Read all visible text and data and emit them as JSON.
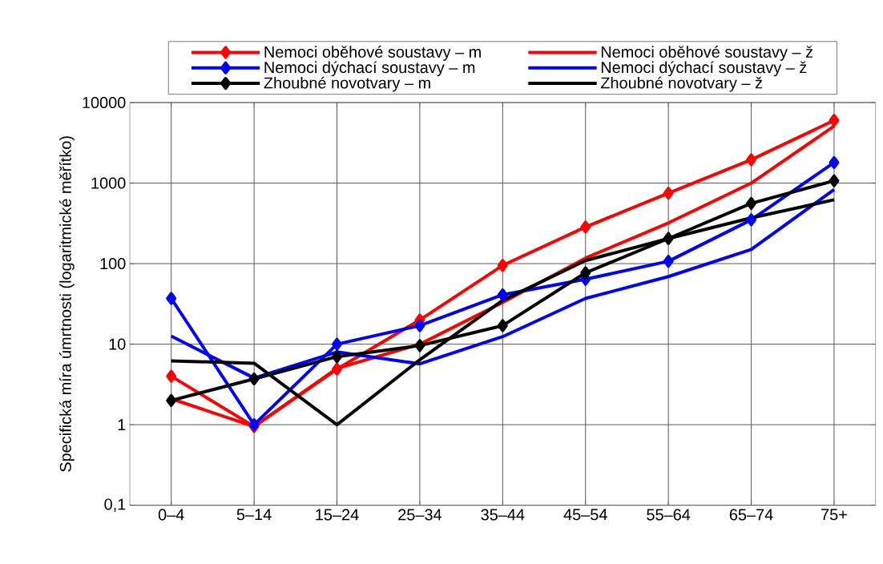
{
  "chart_data": {
    "type": "line",
    "ylabel": "Specifická míra úmrtnosti (logaritmické měřítko)",
    "categories": [
      "0–4",
      "5–14",
      "15–24",
      "25–34",
      "35–44",
      "45–54",
      "55–64",
      "65–74",
      "75+"
    ],
    "log": true,
    "ylim": [
      0.1,
      10000
    ],
    "yticks": [
      {
        "value": 0.1,
        "label": "0,1"
      },
      1,
      10,
      100,
      1000,
      10000
    ],
    "grid": true,
    "legend": "top",
    "series": [
      {
        "name": "Nemoci oběhové soustavy – m",
        "color": "#ff0000",
        "marker": "diamond",
        "values": [
          4.0,
          0.95,
          4.9,
          20,
          95,
          285,
          750,
          1950,
          6000
        ]
      },
      {
        "name": "Nemoci oběhové soustavy – ž",
        "color": "#ff0000",
        "marker": "none",
        "values": [
          2.1,
          0.95,
          5.0,
          10,
          33,
          117,
          320,
          1000,
          5100
        ]
      },
      {
        "name": "Nemoci dýchací soustavy – m",
        "color": "#0000ff",
        "marker": "diamond",
        "values": [
          37,
          1.0,
          10,
          17,
          41,
          64,
          107,
          350,
          1800
        ]
      },
      {
        "name": "Nemoci dýchací soustavy – ž",
        "color": "#0000ff",
        "marker": "none",
        "values": [
          12.6,
          3.8,
          8,
          5.7,
          12.4,
          37,
          69,
          150,
          830
        ]
      },
      {
        "name": "Zhoubné novotvary – m",
        "color": "#000000",
        "marker": "diamond",
        "values": [
          2.0,
          3.7,
          7.0,
          9.6,
          17,
          77,
          205,
          560,
          1070
        ]
      },
      {
        "name": "Zhoubné novotvary – ž",
        "color": "#000000",
        "marker": "none",
        "values": [
          6.2,
          5.8,
          1.0,
          6.4,
          35,
          109,
          205,
          370,
          620
        ]
      }
    ]
  }
}
